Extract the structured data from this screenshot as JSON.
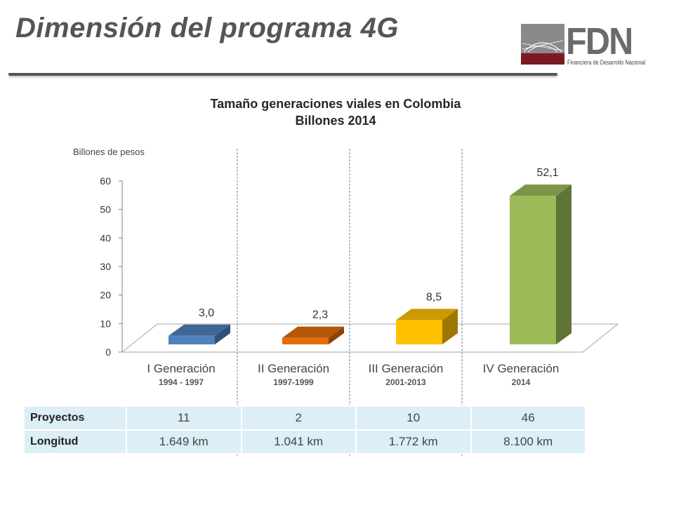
{
  "slide": {
    "title": "Dimensión del programa 4G",
    "logo_text": "FDN",
    "logo_subtitle": "Financiera de Desarrollo Nacional"
  },
  "chart_data": {
    "type": "bar",
    "title": "Tamaño generaciones viales en Colombia",
    "subtitle": "Billones 2014",
    "ylabel": "Billones de pesos",
    "xlabel": "",
    "ylim": [
      0,
      60
    ],
    "yticks": [
      0,
      10,
      20,
      30,
      40,
      50,
      60
    ],
    "categories": [
      "I Generación",
      "II Generación",
      "III Generación",
      "IV Generación"
    ],
    "category_years": [
      "1994 - 1997",
      "1997-1999",
      "2001-2013",
      "2014"
    ],
    "values": [
      3.0,
      2.3,
      8.5,
      52.1
    ],
    "value_labels": [
      "3,0",
      "2,3",
      "8,5",
      "52,1"
    ],
    "colors": [
      "#4f81bd",
      "#e46c0a",
      "#ffc000",
      "#9bbb59"
    ],
    "grid": false,
    "legend": "none"
  },
  "table": {
    "rows": [
      {
        "label": "Proyectos",
        "values": [
          "11",
          "2",
          "10",
          "46"
        ]
      },
      {
        "label": "Longitud",
        "values": [
          "1.649 km",
          "1.041 km",
          "1.772 km",
          "8.100 km"
        ]
      }
    ]
  }
}
